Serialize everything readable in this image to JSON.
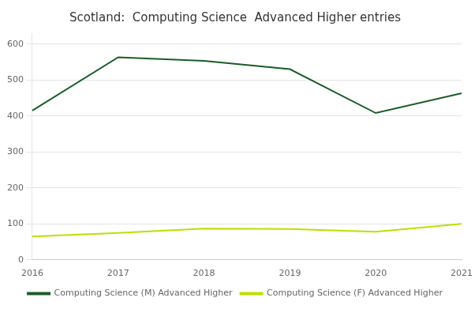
{
  "chart_data": {
    "type": "line",
    "title": "Scotland:  Computing Science  Advanced Higher entries",
    "categories": [
      "2016",
      "2017",
      "2018",
      "2019",
      "2020",
      "2021"
    ],
    "series": [
      {
        "name": "Computing Science (M) Advanced Higher",
        "color": "#1a5c2a",
        "values": [
          415,
          563,
          553,
          530,
          408,
          463
        ]
      },
      {
        "name": "Computing Science (F) Advanced Higher",
        "color": "#bfde00",
        "values": [
          65,
          75,
          87,
          86,
          78,
          100
        ]
      }
    ],
    "ylim": [
      0,
      630
    ],
    "yticks": [
      0,
      100,
      200,
      300,
      400,
      500,
      600
    ],
    "grid": true,
    "legend": "bottom"
  }
}
